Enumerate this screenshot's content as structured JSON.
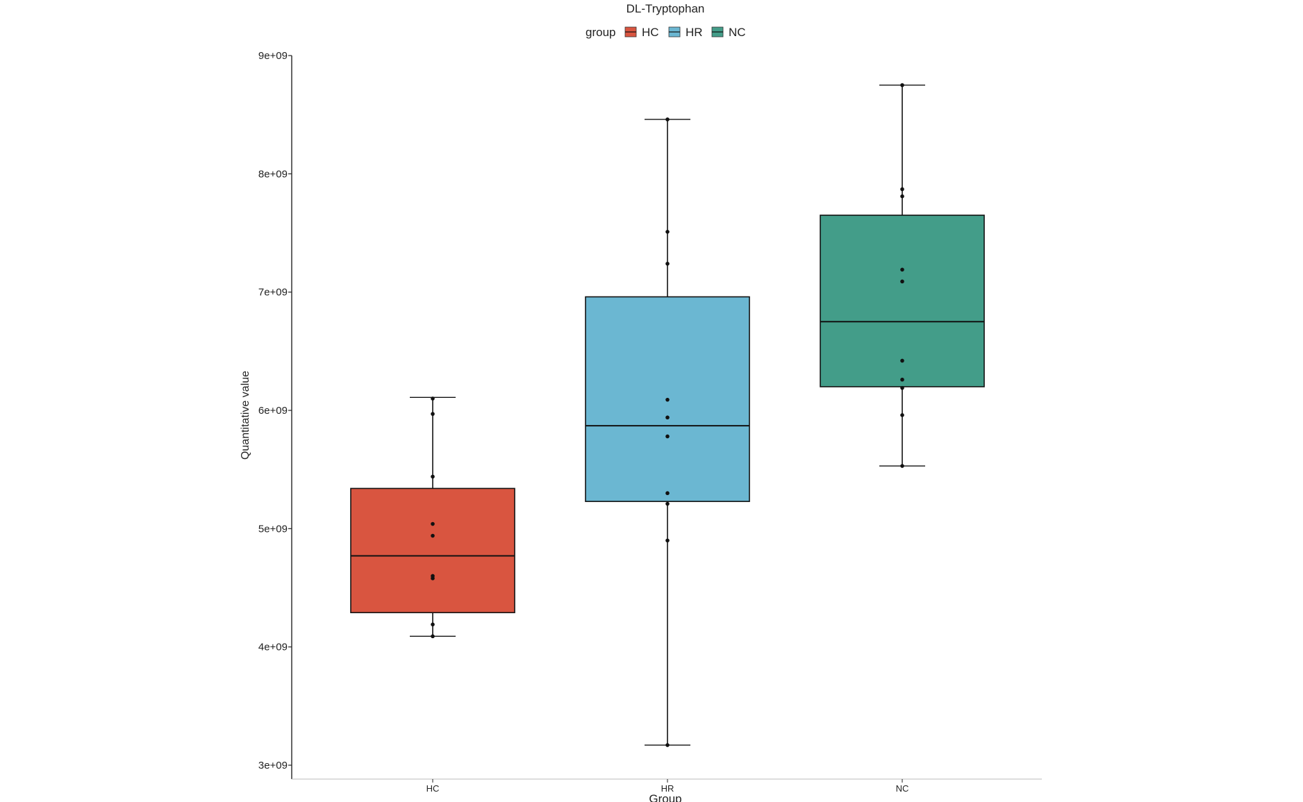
{
  "chart_data": {
    "type": "box",
    "title": "DL-Tryptophan",
    "xlabel": "Group",
    "ylabel": "Quantitative value",
    "legend": {
      "title": "group",
      "position": "top",
      "entries": [
        {
          "label": "HC",
          "color": "#d95540"
        },
        {
          "label": "HR",
          "color": "#6bb7d2"
        },
        {
          "label": "NC",
          "color": "#439d89"
        }
      ]
    },
    "ylim": [
      2900000000.0,
      9000000000.0
    ],
    "yticks": [
      {
        "value": 3000000000.0,
        "label": "3e+09"
      },
      {
        "value": 4000000000.0,
        "label": "4e+09"
      },
      {
        "value": 5000000000.0,
        "label": "5e+09"
      },
      {
        "value": 6000000000.0,
        "label": "6e+09"
      },
      {
        "value": 7000000000.0,
        "label": "7e+09"
      },
      {
        "value": 8000000000.0,
        "label": "8e+09"
      },
      {
        "value": 9000000000.0,
        "label": "9e+09"
      }
    ],
    "grid": false,
    "categories": [
      "HC",
      "HR",
      "NC"
    ],
    "series": [
      {
        "name": "HC",
        "color": "#d95540",
        "whisker_low": 4090000000.0,
        "q1": 4290000000.0,
        "median": 4770000000.0,
        "q3": 5340000000.0,
        "whisker_high": 6110000000.0,
        "points": [
          4090000000.0,
          4190000000.0,
          4580000000.0,
          4600000000.0,
          4940000000.0,
          5040000000.0,
          5440000000.0,
          5970000000.0,
          6100000000.0
        ]
      },
      {
        "name": "HR",
        "color": "#6bb7d2",
        "whisker_low": 3170000000.0,
        "q1": 5230000000.0,
        "median": 5870000000.0,
        "q3": 6960000000.0,
        "whisker_high": 8460000000.0,
        "points": [
          3170000000.0,
          4900000000.0,
          5210000000.0,
          5300000000.0,
          5780000000.0,
          5940000000.0,
          6090000000.0,
          7240000000.0,
          7510000000.0,
          8460000000.0
        ]
      },
      {
        "name": "NC",
        "color": "#439d89",
        "whisker_low": 5530000000.0,
        "q1": 6200000000.0,
        "median": 6750000000.0,
        "q3": 7650000000.0,
        "whisker_high": 8750000000.0,
        "points": [
          5530000000.0,
          5960000000.0,
          6190000000.0,
          6260000000.0,
          6420000000.0,
          7090000000.0,
          7190000000.0,
          7810000000.0,
          7870000000.0,
          8750000000.0
        ]
      }
    ]
  }
}
